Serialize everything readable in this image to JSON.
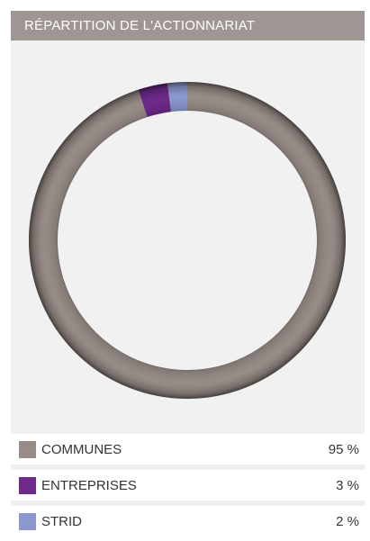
{
  "header": {
    "title": "RÉPARTITION DE L'ACTIONNARIAT"
  },
  "colors": {
    "header_bg": "#9f9592",
    "chart_bg": "#f1f1f1",
    "communes": "#978c87",
    "entreprises": "#6e2a8b",
    "strid": "#8b98cf"
  },
  "chart_data": {
    "type": "pie",
    "variant": "donut",
    "title": "RÉPARTITION DE L'ACTIONNARIAT",
    "start_angle_deg": 0,
    "direction": "clockwise",
    "slices": [
      {
        "label": "COMMUNES",
        "value": 95,
        "display": "95 %",
        "color": "#978c87"
      },
      {
        "label": "ENTREPRISES",
        "value": 3,
        "display": "3 %",
        "color": "#6e2a8b"
      },
      {
        "label": "STRID",
        "value": 2,
        "display": "2 %",
        "color": "#8b98cf"
      }
    ]
  },
  "legend": {
    "items": [
      {
        "label": "COMMUNES",
        "value": "95 %"
      },
      {
        "label": "ENTREPRISES",
        "value": "3 %"
      },
      {
        "label": "STRID",
        "value": "2 %"
      }
    ]
  }
}
